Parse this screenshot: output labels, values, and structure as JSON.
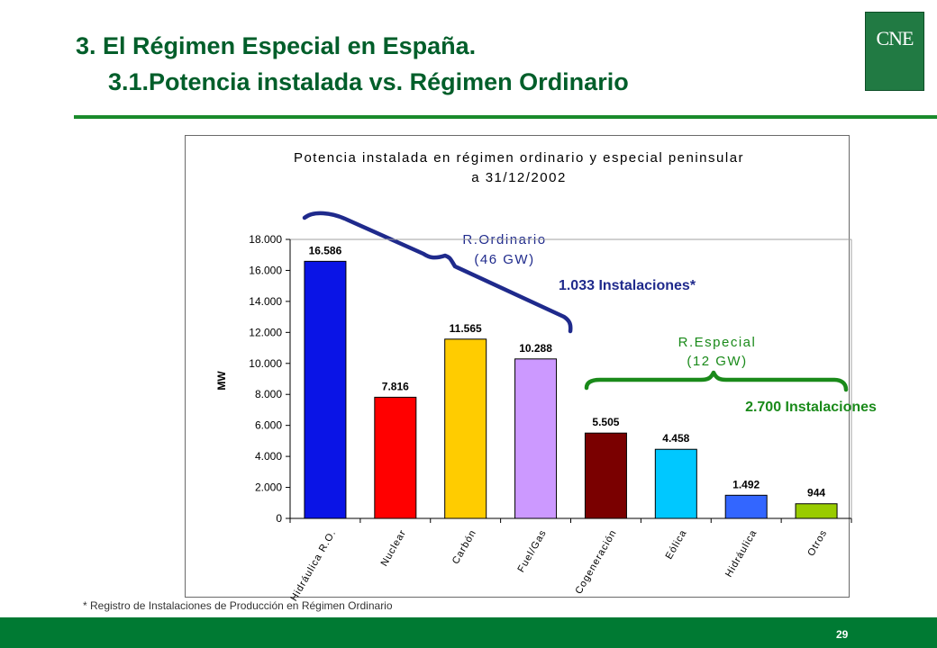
{
  "slide": {
    "title_line1": "3. El Régimen Especial en España.",
    "title_line2": "3.1.Potencia instalada vs. Régimen Ordinario",
    "logo_text": "CNE",
    "footnote": "* Registro de Instalaciones de Producción en Régimen Ordinario",
    "page_number": "29",
    "colors": {
      "title": "#005e2a",
      "rule": "#1a8a2b",
      "footer": "#007a33",
      "ordinario_brace": "#1f2a8c",
      "especial_brace": "#1a8a1a"
    }
  },
  "chart_data": {
    "type": "bar",
    "title_line1": "Potencia instalada en régimen ordinario y especial peninsular",
    "title_line2": "a 31/12/2002",
    "ylabel": "MW",
    "ylim": [
      0,
      18000
    ],
    "ytick_values": [
      0,
      2000,
      4000,
      6000,
      8000,
      10000,
      12000,
      14000,
      16000,
      18000
    ],
    "ytick_labels": [
      "0",
      "2.000",
      "4.000",
      "6.000",
      "8.000",
      "10.000",
      "12.000",
      "14.000",
      "16.000",
      "18.000"
    ],
    "categories": [
      "Hidráulica R.O.",
      "Nuclear",
      "Carbón",
      "Fuel/Gas",
      "Cogeneración",
      "Eólica",
      "Hidráulica",
      "Otros"
    ],
    "values": [
      16586,
      7816,
      11565,
      10288,
      5505,
      4458,
      1492,
      944
    ],
    "value_labels": [
      "16.586",
      "7.816",
      "11.565",
      "10.288",
      "5.505",
      "4.458",
      "1.492",
      "944"
    ],
    "colors": [
      "#0a14e6",
      "#ff0000",
      "#ffcc00",
      "#cc99ff",
      "#7a0000",
      "#00c8ff",
      "#3366ff",
      "#99cc00"
    ],
    "groups": [
      {
        "name": "R.Ordinario",
        "subtitle": "(46 GW)",
        "note": "1.033 Instalaciones*",
        "color": "#1f2a8c"
      },
      {
        "name": "R.Especial",
        "subtitle": "(12 GW)",
        "note": "2.700 Instalaciones",
        "color": "#1a8a1a"
      }
    ],
    "grid": false,
    "legend": "none"
  }
}
